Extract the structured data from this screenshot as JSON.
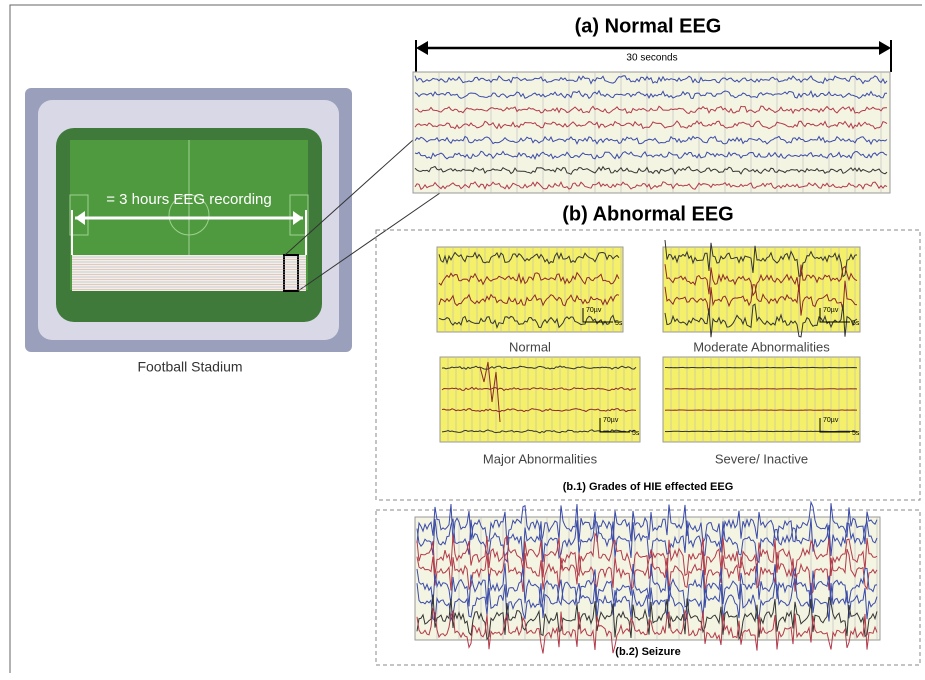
{
  "stadium": {
    "caption": "Football Stadium",
    "span_label": "= 3 hours EEG recording"
  },
  "normal": {
    "title": "(a) Normal EEG",
    "duration_label": "30 seconds"
  },
  "abnormal": {
    "title": "(b) Abnormal EEG",
    "grades": [
      {
        "label": "Normal",
        "amplitude": "70µv",
        "time": "5s"
      },
      {
        "label": "Moderate Abnormalities",
        "amplitude": "70µv",
        "time": "5s"
      },
      {
        "label": "Major Abnormalities",
        "amplitude": "70µv",
        "time": "5s"
      },
      {
        "label": "Severe/ Inactive",
        "amplitude": "70µv",
        "time": "5s"
      }
    ],
    "grades_caption": "(b.1) Grades of HIE effected EEG",
    "seizure_caption": "(b.2) Seizure"
  }
}
